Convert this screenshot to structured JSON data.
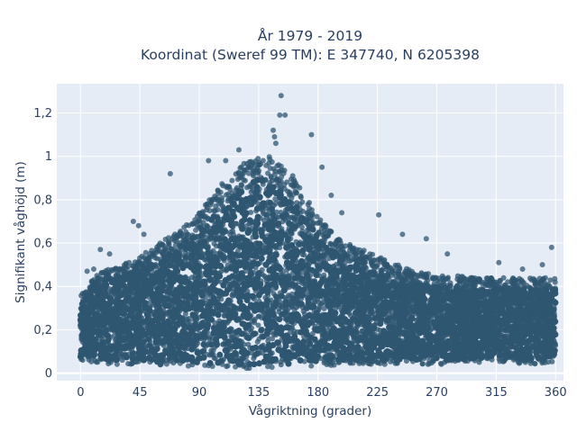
{
  "chart_data": {
    "type": "scatter",
    "title": "År 1979 - 2019",
    "subtitle": "Koordinat (Sweref 99 TM): E 347740, N 6205398",
    "xlabel": "Vågriktning (grader)",
    "ylabel": "Signifikant våghöjd (m)",
    "xlim": [
      -18,
      366
    ],
    "ylim": [
      -0.035,
      1.335
    ],
    "xticks": [
      0,
      45,
      90,
      135,
      180,
      225,
      270,
      315,
      360
    ],
    "xtick_labels": [
      "0",
      "45",
      "90",
      "135",
      "180",
      "225",
      "270",
      "315",
      "360"
    ],
    "yticks": [
      0,
      0.2,
      0.4,
      0.6,
      0.8,
      1.0,
      1.2
    ],
    "ytick_labels": [
      "0",
      "0,2",
      "0,4",
      "0,6",
      "0,8",
      "1",
      "1,2"
    ],
    "grid": true,
    "marker_color": "#2f5670",
    "background_color": "#e5ecf6",
    "envelope": {
      "direction": [
        0,
        10,
        20,
        30,
        45,
        60,
        75,
        90,
        105,
        120,
        135,
        150,
        160,
        170,
        180,
        195,
        210,
        225,
        240,
        255,
        270,
        285,
        300,
        315,
        330,
        345,
        360
      ],
      "min_height": [
        0.05,
        0.05,
        0.04,
        0.04,
        0.04,
        0.03,
        0.03,
        0.03,
        0.02,
        0.02,
        0.02,
        0.02,
        0.02,
        0.03,
        0.03,
        0.03,
        0.04,
        0.04,
        0.04,
        0.04,
        0.04,
        0.04,
        0.05,
        0.05,
        0.04,
        0.04,
        0.05
      ],
      "max_height": [
        0.36,
        0.44,
        0.48,
        0.5,
        0.54,
        0.6,
        0.66,
        0.74,
        0.86,
        0.95,
        1.02,
        0.98,
        0.92,
        0.82,
        0.72,
        0.62,
        0.58,
        0.54,
        0.5,
        0.47,
        0.45,
        0.45,
        0.44,
        0.44,
        0.44,
        0.44,
        0.44
      ]
    },
    "highlight_points": [
      {
        "x": 152,
        "y": 1.28
      },
      {
        "x": 155,
        "y": 1.19
      },
      {
        "x": 151,
        "y": 1.19
      },
      {
        "x": 146,
        "y": 1.12
      },
      {
        "x": 147,
        "y": 1.09
      },
      {
        "x": 148,
        "y": 1.06
      },
      {
        "x": 175,
        "y": 1.1
      },
      {
        "x": 120,
        "y": 1.03
      },
      {
        "x": 110,
        "y": 0.98
      },
      {
        "x": 97,
        "y": 0.98
      },
      {
        "x": 68,
        "y": 0.92
      },
      {
        "x": 183,
        "y": 0.95
      },
      {
        "x": 190,
        "y": 0.82
      },
      {
        "x": 198,
        "y": 0.74
      },
      {
        "x": 226,
        "y": 0.73
      },
      {
        "x": 244,
        "y": 0.64
      },
      {
        "x": 262,
        "y": 0.62
      },
      {
        "x": 278,
        "y": 0.55
      },
      {
        "x": 317,
        "y": 0.51
      },
      {
        "x": 335,
        "y": 0.48
      },
      {
        "x": 357,
        "y": 0.58
      },
      {
        "x": 350,
        "y": 0.5
      },
      {
        "x": 40,
        "y": 0.7
      },
      {
        "x": 44,
        "y": 0.68
      },
      {
        "x": 48,
        "y": 0.64
      },
      {
        "x": 15,
        "y": 0.57
      },
      {
        "x": 22,
        "y": 0.55
      },
      {
        "x": 5,
        "y": 0.47
      },
      {
        "x": 10,
        "y": 0.48
      }
    ]
  }
}
